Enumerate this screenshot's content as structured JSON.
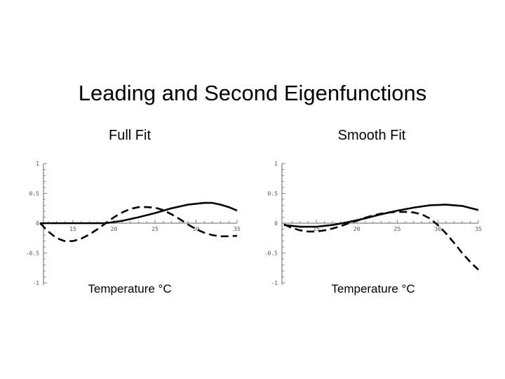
{
  "slide": {
    "title": "Leading and Second Eigenfunctions"
  },
  "chart_data": [
    {
      "type": "line",
      "title": "Full Fit",
      "xlabel": "Temperature °C",
      "ylabel": "",
      "xlim": [
        11,
        35
      ],
      "ylim": [
        -1,
        1
      ],
      "x_ticks": [
        "15",
        "20",
        "25",
        "30",
        "35"
      ],
      "y_ticks": [
        "1",
        "0.5",
        "0",
        "-0.5",
        "-1"
      ],
      "grid": false,
      "series": [
        {
          "style": "solid",
          "x": [
            11,
            13,
            15,
            17,
            19,
            21,
            23,
            25,
            27,
            29,
            31,
            32,
            33,
            34,
            35
          ],
          "y": [
            0.0,
            0.0,
            0.0,
            0.0,
            0.0,
            0.04,
            0.1,
            0.17,
            0.25,
            0.31,
            0.34,
            0.34,
            0.31,
            0.27,
            0.21
          ]
        },
        {
          "style": "dashed",
          "x": [
            11,
            12,
            13,
            14,
            15,
            16,
            17,
            18,
            19,
            20,
            21,
            22,
            23,
            24,
            25,
            26,
            27,
            28,
            29,
            30,
            31,
            32,
            33,
            34,
            35
          ],
          "y": [
            0.0,
            -0.14,
            -0.25,
            -0.3,
            -0.3,
            -0.26,
            -0.19,
            -0.1,
            0.0,
            0.1,
            0.18,
            0.24,
            0.27,
            0.27,
            0.26,
            0.22,
            0.15,
            0.07,
            -0.02,
            -0.1,
            -0.16,
            -0.2,
            -0.22,
            -0.22,
            -0.21
          ]
        }
      ]
    },
    {
      "type": "line",
      "title": "Smooth Fit",
      "xlabel": "Temperature °C",
      "ylabel": "",
      "xlim": [
        11,
        35
      ],
      "ylim": [
        -1,
        1
      ],
      "x_ticks": [
        "15",
        "20",
        "25",
        "30",
        "35"
      ],
      "y_ticks": [
        "1",
        "0.5",
        "0",
        "-0.5",
        "-1"
      ],
      "grid": false,
      "series": [
        {
          "style": "solid",
          "x": [
            11,
            13,
            15,
            17,
            19,
            21,
            23,
            25,
            27,
            29,
            31,
            33,
            35
          ],
          "y": [
            -0.03,
            -0.06,
            -0.06,
            -0.03,
            0.02,
            0.08,
            0.15,
            0.21,
            0.26,
            0.3,
            0.31,
            0.29,
            0.22
          ]
        },
        {
          "style": "dashed",
          "x": [
            11,
            12,
            13,
            14,
            15,
            16,
            17,
            18,
            19,
            20,
            21,
            22,
            23,
            24,
            25,
            26,
            27,
            28,
            29,
            30,
            31,
            32,
            33,
            34,
            35
          ],
          "y": [
            -0.02,
            -0.08,
            -0.12,
            -0.14,
            -0.14,
            -0.12,
            -0.09,
            -0.05,
            0.0,
            0.04,
            0.09,
            0.13,
            0.16,
            0.18,
            0.19,
            0.19,
            0.18,
            0.15,
            0.08,
            -0.03,
            -0.17,
            -0.33,
            -0.5,
            -0.65,
            -0.78
          ]
        }
      ]
    }
  ]
}
